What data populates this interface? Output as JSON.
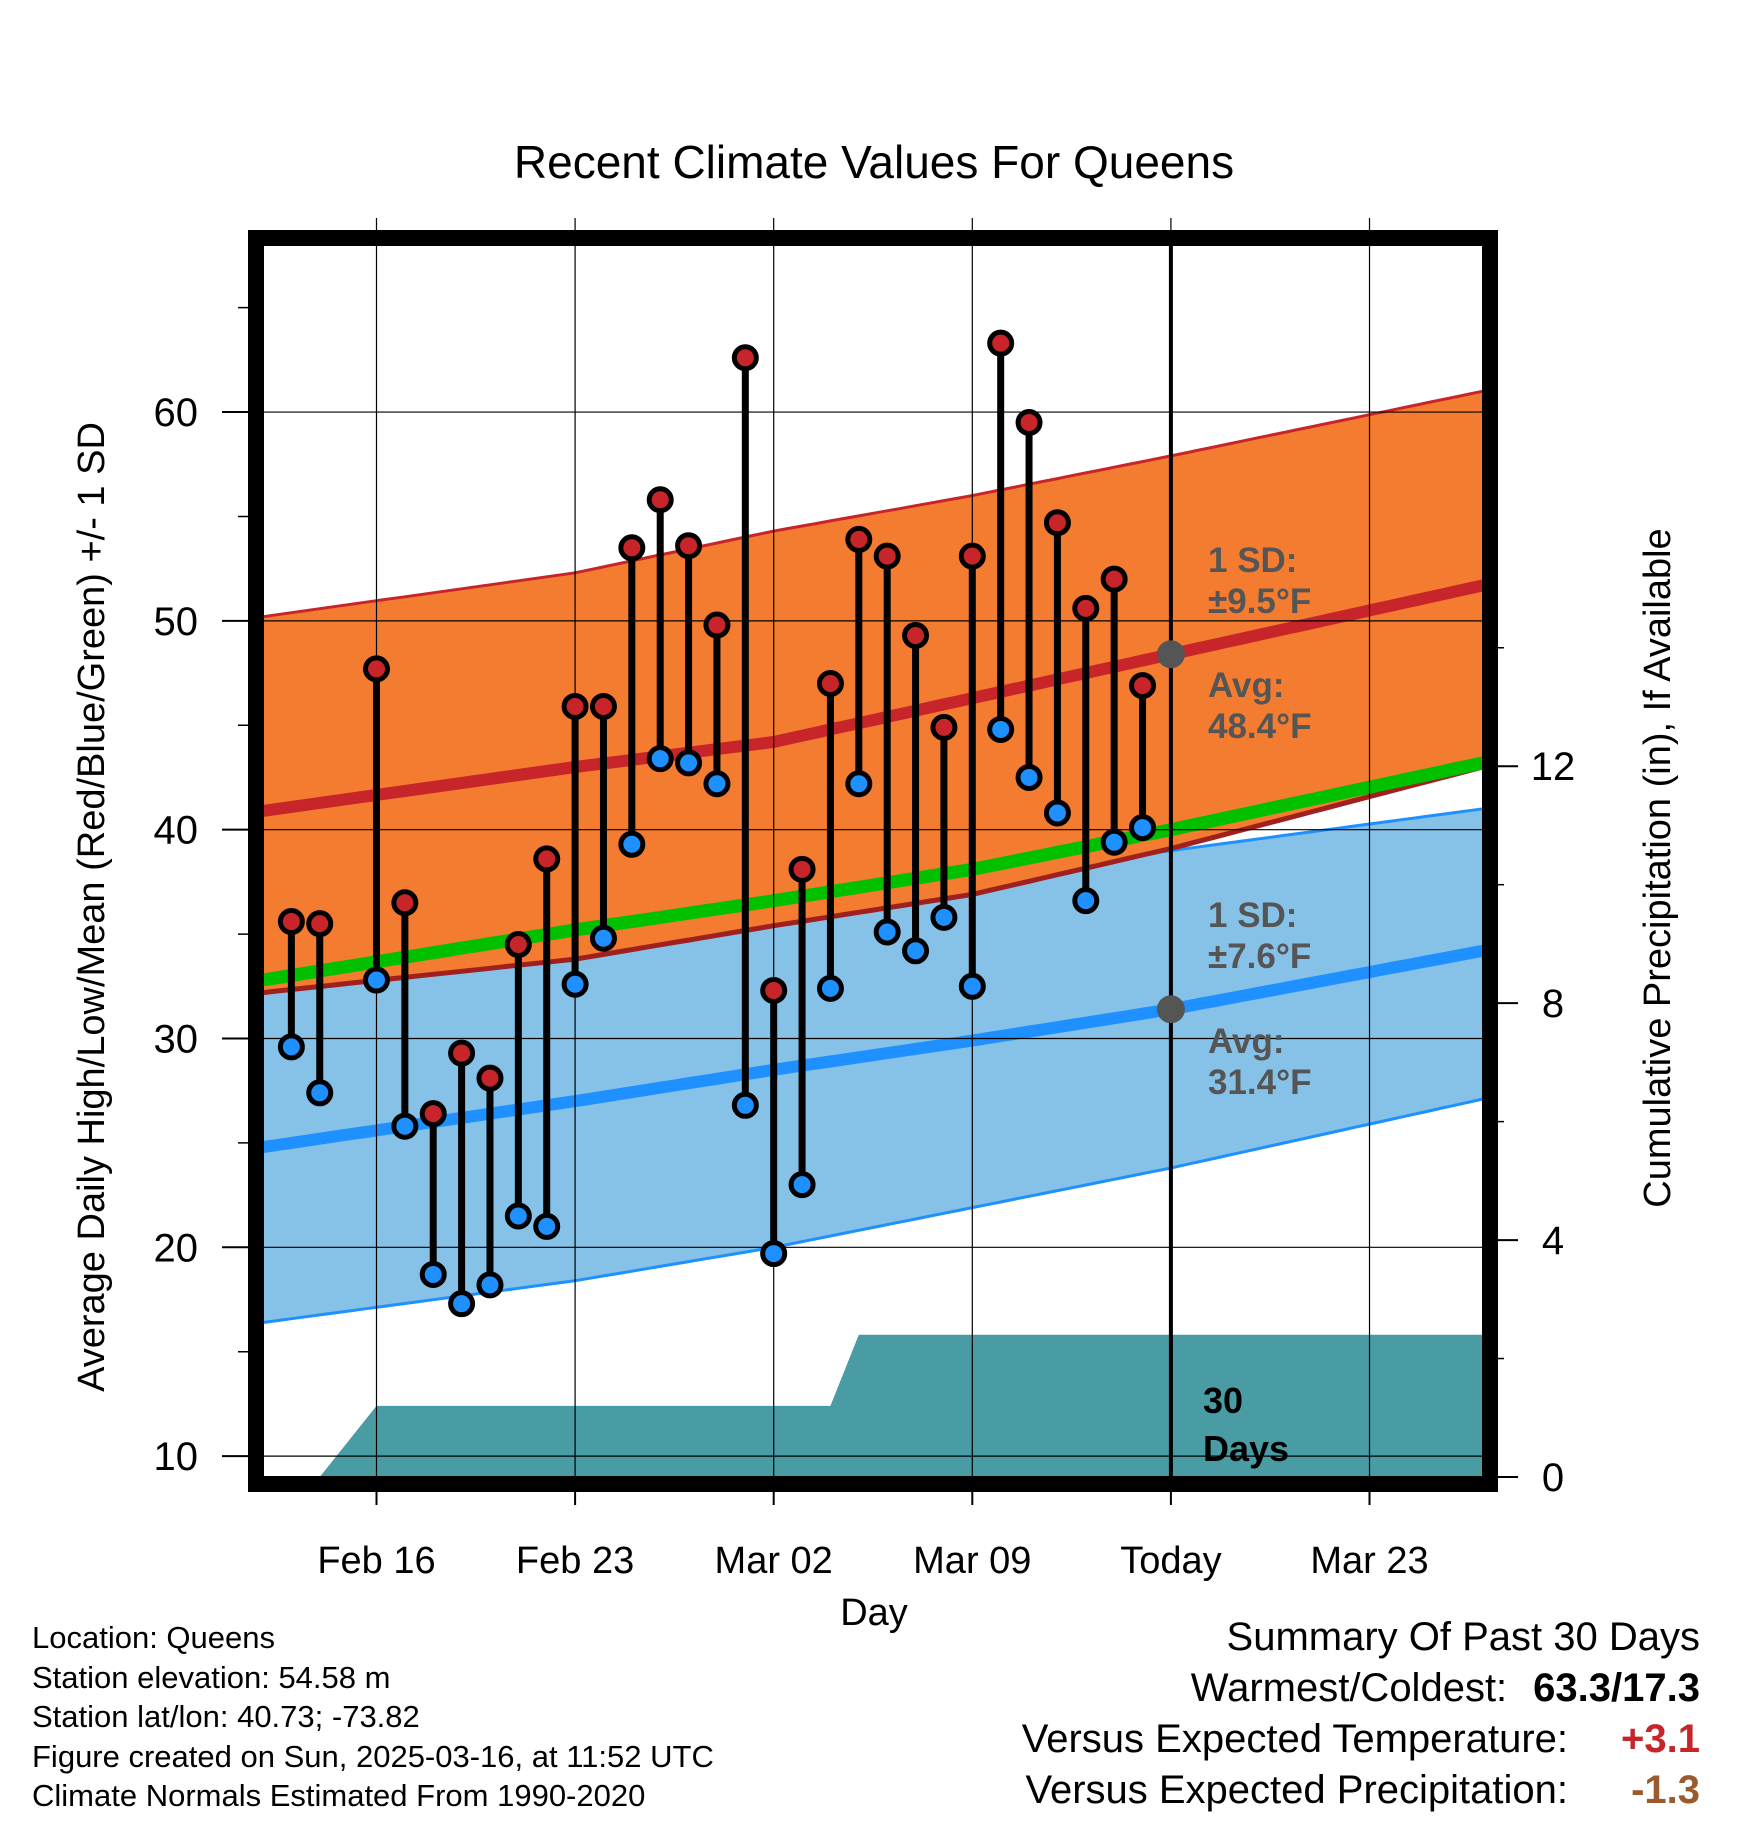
{
  "chart_data": {
    "type": "line",
    "title": "Recent Climate Values For Queens",
    "xlabel": "Day",
    "ylabel": "Average Daily High/Low/Mean (Red/Blue/Green) +/- 1 SD",
    "y2label": "Cumulative Precipitation (in), If Available",
    "ylim": [
      9,
      68
    ],
    "y2lim": [
      0,
      20.8
    ],
    "x_range": [
      "2025-02-12",
      "2025-03-27"
    ],
    "x_ticks": [
      {
        "date": "2025-02-16",
        "label": "Feb 16"
      },
      {
        "date": "2025-02-23",
        "label": "Feb 23"
      },
      {
        "date": "2025-03-02",
        "label": "Mar 02"
      },
      {
        "date": "2025-03-09",
        "label": "Mar 09"
      },
      {
        "date": "2025-03-16",
        "label": "Today"
      },
      {
        "date": "2025-03-23",
        "label": "Mar 23"
      }
    ],
    "y_ticks": [
      10,
      20,
      30,
      40,
      50,
      60
    ],
    "y2_ticks": [
      0,
      4,
      8,
      12
    ],
    "today": "2025-03-16",
    "grid": true,
    "normals": {
      "dates": [
        "2025-02-12",
        "2025-02-23",
        "2025-03-02",
        "2025-03-09",
        "2025-03-16",
        "2025-03-27"
      ],
      "high_mean": [
        40.9,
        43.0,
        44.2,
        46.3,
        48.4,
        51.7
      ],
      "high_upper": [
        50.2,
        52.3,
        54.3,
        56.0,
        57.9,
        61.0
      ],
      "high_lower": [
        32.2,
        33.8,
        35.4,
        36.9,
        39.1,
        43.0
      ],
      "low_mean": [
        24.8,
        27.0,
        28.5,
        29.9,
        31.4,
        34.2
      ],
      "low_upper": [
        33.5,
        35.0,
        36.5,
        37.8,
        39.0,
        41.0
      ],
      "low_lower": [
        16.4,
        18.4,
        20.0,
        21.9,
        23.8,
        27.1
      ],
      "mean_mean": [
        32.8,
        35.2,
        36.6,
        38.1,
        40.0,
        43.2
      ]
    },
    "series": [
      {
        "name": "High",
        "color": "#c8252a",
        "dates": [
          "2025-02-13",
          "2025-02-14",
          "2025-02-16",
          "2025-02-17",
          "2025-02-18",
          "2025-02-19",
          "2025-02-20",
          "2025-02-21",
          "2025-02-22",
          "2025-02-23",
          "2025-02-24",
          "2025-02-25",
          "2025-02-26",
          "2025-02-27",
          "2025-02-28",
          "2025-03-01",
          "2025-03-02",
          "2025-03-03",
          "2025-03-04",
          "2025-03-05",
          "2025-03-06",
          "2025-03-07",
          "2025-03-08",
          "2025-03-09",
          "2025-03-10",
          "2025-03-11",
          "2025-03-12",
          "2025-03-13",
          "2025-03-14",
          "2025-03-15"
        ],
        "values": [
          35.6,
          35.5,
          47.7,
          36.5,
          26.4,
          29.3,
          28.1,
          34.5,
          38.6,
          45.9,
          45.9,
          53.5,
          55.8,
          53.6,
          49.8,
          62.6,
          32.3,
          38.1,
          47.0,
          53.9,
          53.1,
          49.3,
          44.9,
          53.1,
          63.3,
          59.5,
          54.7,
          50.6,
          52.0,
          46.9
        ]
      },
      {
        "name": "Low",
        "color": "#1e90ff",
        "dates": [
          "2025-02-13",
          "2025-02-14",
          "2025-02-16",
          "2025-02-17",
          "2025-02-18",
          "2025-02-19",
          "2025-02-20",
          "2025-02-21",
          "2025-02-22",
          "2025-02-23",
          "2025-02-24",
          "2025-02-25",
          "2025-02-26",
          "2025-02-27",
          "2025-02-28",
          "2025-03-01",
          "2025-03-02",
          "2025-03-03",
          "2025-03-04",
          "2025-03-05",
          "2025-03-06",
          "2025-03-07",
          "2025-03-08",
          "2025-03-09",
          "2025-03-10",
          "2025-03-11",
          "2025-03-12",
          "2025-03-13",
          "2025-03-14",
          "2025-03-15"
        ],
        "values": [
          29.6,
          27.4,
          32.8,
          25.8,
          18.7,
          17.3,
          18.2,
          21.5,
          21.0,
          32.6,
          34.8,
          39.3,
          43.4,
          43.2,
          42.2,
          26.8,
          19.7,
          23.0,
          32.4,
          42.2,
          35.1,
          34.2,
          35.8,
          32.5,
          44.8,
          42.5,
          40.8,
          36.6,
          39.4,
          40.1
        ]
      },
      {
        "name": "Cumulative Precipitation",
        "color": "#4a9ca4",
        "dates": [
          "2025-02-14",
          "2025-02-16",
          "2025-03-04",
          "2025-03-05",
          "2025-03-27"
        ],
        "values": [
          0.0,
          1.2,
          1.2,
          2.4,
          2.4
        ]
      }
    ],
    "annotations": {
      "high_sd": "1 SD:",
      "high_sd_value": "±9.5°F",
      "high_avg": "Avg:",
      "high_avg_value": "48.4°F",
      "low_sd": "1 SD:",
      "low_sd_value": "±7.6°F",
      "low_avg": "Avg:",
      "low_avg_value": "31.4°F",
      "window_line1": "30",
      "window_line2": "Days"
    }
  },
  "footer": {
    "location": "Location: Queens",
    "elevation": "Station elevation: 54.58 m",
    "latlon": "Station lat/lon: 40.73; -73.82",
    "created": "Figure created on Sun, 2025-03-16, at 11:52 UTC",
    "normals": "Climate Normals Estimated From 1990-2020"
  },
  "summary": {
    "title": "Summary Of Past 30 Days",
    "warm_cold_label": "Warmest/Coldest:",
    "warm_cold_value": "63.3/17.3",
    "temp_label": "Versus Expected Temperature:",
    "temp_value": "+3.1",
    "precip_label": "Versus Expected Precipitation:",
    "precip_value": "-1.3"
  },
  "colors": {
    "high_band": "#f47c30",
    "high_line": "#c8252a",
    "low_band": "#86c1e7",
    "low_line": "#1e90ff",
    "mean_line": "#00c000",
    "precip": "#4a9ca4",
    "annotation_text": "#555555",
    "marker": "#555555"
  }
}
